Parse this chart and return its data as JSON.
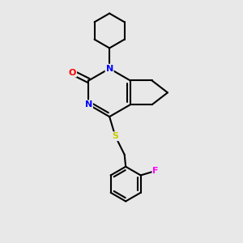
{
  "bg_color": "#e8e8e8",
  "atom_colors": {
    "N": "#0000ff",
    "O": "#ff0000",
    "S": "#cccc00",
    "F": "#ff00ff"
  },
  "bond_color": "#000000",
  "bond_width": 1.5
}
